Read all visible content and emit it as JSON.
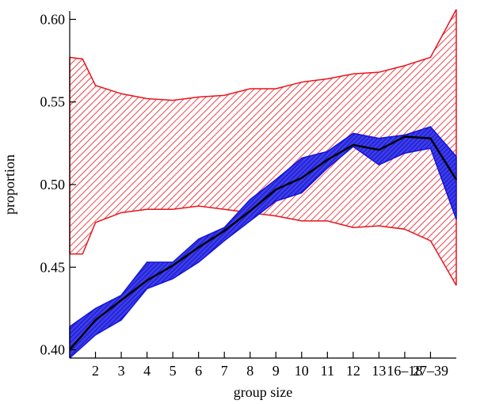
{
  "chart_data": {
    "type": "area",
    "title": "",
    "xlabel": "group size",
    "ylabel": "proportion",
    "categories": [
      "",
      "2",
      "3",
      "4",
      "5",
      "6",
      "7",
      "8",
      "9",
      "10",
      "11",
      "12",
      "13",
      "16–18",
      "27–39"
    ],
    "x_tick_labels": [
      "2",
      "3",
      "4",
      "5",
      "6",
      "7",
      "8",
      "9",
      "10",
      "11",
      "12",
      "13",
      "16–18",
      "27–39"
    ],
    "y_tick_labels": [
      "0.40",
      "0.45",
      "0.50",
      "0.55",
      "0.60"
    ],
    "y_ticks": [
      0.4,
      0.45,
      0.5,
      0.55,
      0.6
    ],
    "ylim": [
      0.395,
      0.605
    ],
    "x_index_start": 1,
    "x_index_end": 16,
    "grid": false,
    "series": [
      {
        "color": "#e8141b",
        "kind": "band",
        "x": [
          1,
          1.5,
          2,
          3,
          4,
          5,
          6,
          7,
          8,
          9,
          10,
          11,
          12,
          13,
          14,
          15,
          16
        ],
        "upper": [
          0.577,
          0.576,
          0.56,
          0.555,
          0.552,
          0.551,
          0.553,
          0.554,
          0.558,
          0.558,
          0.562,
          0.564,
          0.567,
          0.568,
          0.572,
          0.577,
          0.606
        ],
        "lower": [
          0.458,
          0.458,
          0.477,
          0.483,
          0.485,
          0.485,
          0.487,
          0.485,
          0.483,
          0.481,
          0.478,
          0.478,
          0.474,
          0.475,
          0.473,
          0.466,
          0.439
        ]
      },
      {
        "color": "#1414d8",
        "kind": "band",
        "x": [
          1,
          2,
          3,
          4,
          5,
          6,
          7,
          8,
          9,
          10,
          11,
          12,
          13,
          14,
          15,
          16
        ],
        "upper": [
          0.414,
          0.425,
          0.433,
          0.453,
          0.453,
          0.467,
          0.474,
          0.491,
          0.503,
          0.516,
          0.52,
          0.531,
          0.528,
          0.53,
          0.535,
          0.517
        ],
        "lower": [
          0.395,
          0.409,
          0.418,
          0.437,
          0.443,
          0.453,
          0.466,
          0.478,
          0.49,
          0.495,
          0.51,
          0.523,
          0.512,
          0.519,
          0.522,
          0.479
        ]
      },
      {
        "color": "#000000",
        "kind": "line",
        "x": [
          1,
          2,
          3,
          4,
          5,
          6,
          7,
          8,
          9,
          10,
          11,
          12,
          13,
          14,
          15,
          16
        ],
        "values": [
          0.4,
          0.418,
          0.43,
          0.442,
          0.451,
          0.462,
          0.472,
          0.484,
          0.497,
          0.504,
          0.515,
          0.524,
          0.521,
          0.529,
          0.528,
          0.503
        ]
      }
    ]
  }
}
